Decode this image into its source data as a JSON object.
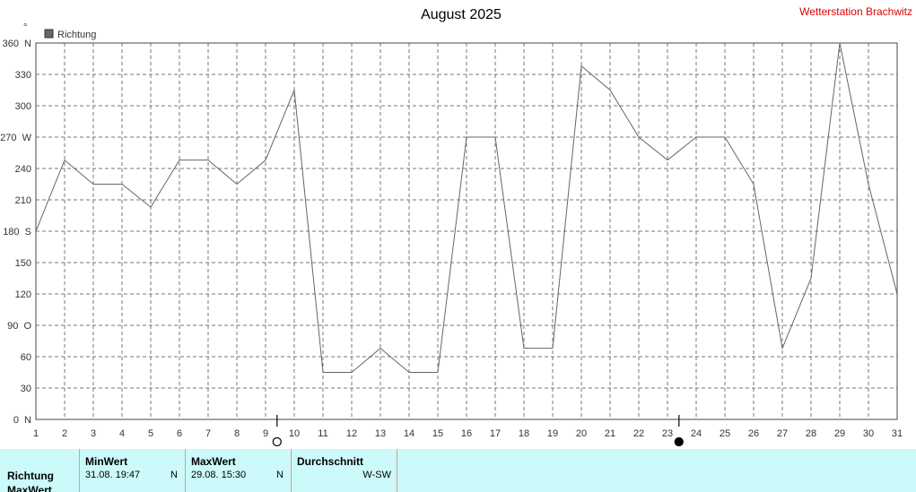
{
  "title": "August 2025",
  "station": "Wetterstation Brachwitz",
  "y_unit_mark": "°",
  "legend": {
    "label": "Richtung",
    "swatch_color": "#666666"
  },
  "colors": {
    "series": "#666666",
    "station": "#e00000",
    "table_bg": "#ccfafa",
    "table_border": "#d89a9a"
  },
  "chart_data": {
    "type": "line",
    "x": [
      1,
      2,
      3,
      4,
      5,
      6,
      7,
      8,
      9,
      10,
      11,
      12,
      13,
      14,
      15,
      16,
      17,
      18,
      19,
      20,
      21,
      22,
      23,
      24,
      25,
      26,
      27,
      28,
      29,
      30,
      31
    ],
    "series": [
      {
        "name": "Richtung",
        "values": [
          180,
          248,
          225,
          225,
          203,
          248,
          248,
          225,
          248,
          315,
          45,
          45,
          68,
          45,
          45,
          270,
          270,
          68,
          68,
          338,
          315,
          270,
          248,
          270,
          270,
          225,
          68,
          135,
          360,
          225,
          120
        ]
      }
    ],
    "xlim": [
      1,
      31
    ],
    "ylim": [
      0,
      360
    ],
    "yticks": [
      0,
      30,
      60,
      90,
      120,
      150,
      180,
      210,
      240,
      270,
      300,
      330,
      360
    ],
    "ytick_labels": [
      "0  N",
      "30",
      "60",
      "90  O",
      "120",
      "150",
      "180  S",
      "210",
      "240",
      "270  W",
      "300",
      "330",
      "360  N"
    ],
    "xtick_labels": [
      "1",
      "2",
      "3",
      "4",
      "5",
      "6",
      "7",
      "8",
      "9",
      "10",
      "11",
      "12",
      "13",
      "14",
      "15",
      "16",
      "17",
      "18",
      "19",
      "20",
      "21",
      "22",
      "23",
      "24",
      "25",
      "26",
      "27",
      "28",
      "29",
      "30",
      "31"
    ],
    "grid": true,
    "legend_position": "top-left",
    "moon_phases": [
      {
        "x": 9.4,
        "phase": "full"
      },
      {
        "x": 23.4,
        "phase": "new"
      }
    ]
  },
  "table": {
    "columns": [
      {
        "header": "MinWert",
        "value": "31.08.  19:47",
        "dir": "N"
      },
      {
        "header": "MaxWert",
        "value": "29.08.  15:30",
        "dir": "N"
      },
      {
        "header": "Durchschnitt",
        "value": "",
        "dir": "W-SW"
      }
    ],
    "rows": [
      "Richtung",
      "MaxWert"
    ]
  }
}
